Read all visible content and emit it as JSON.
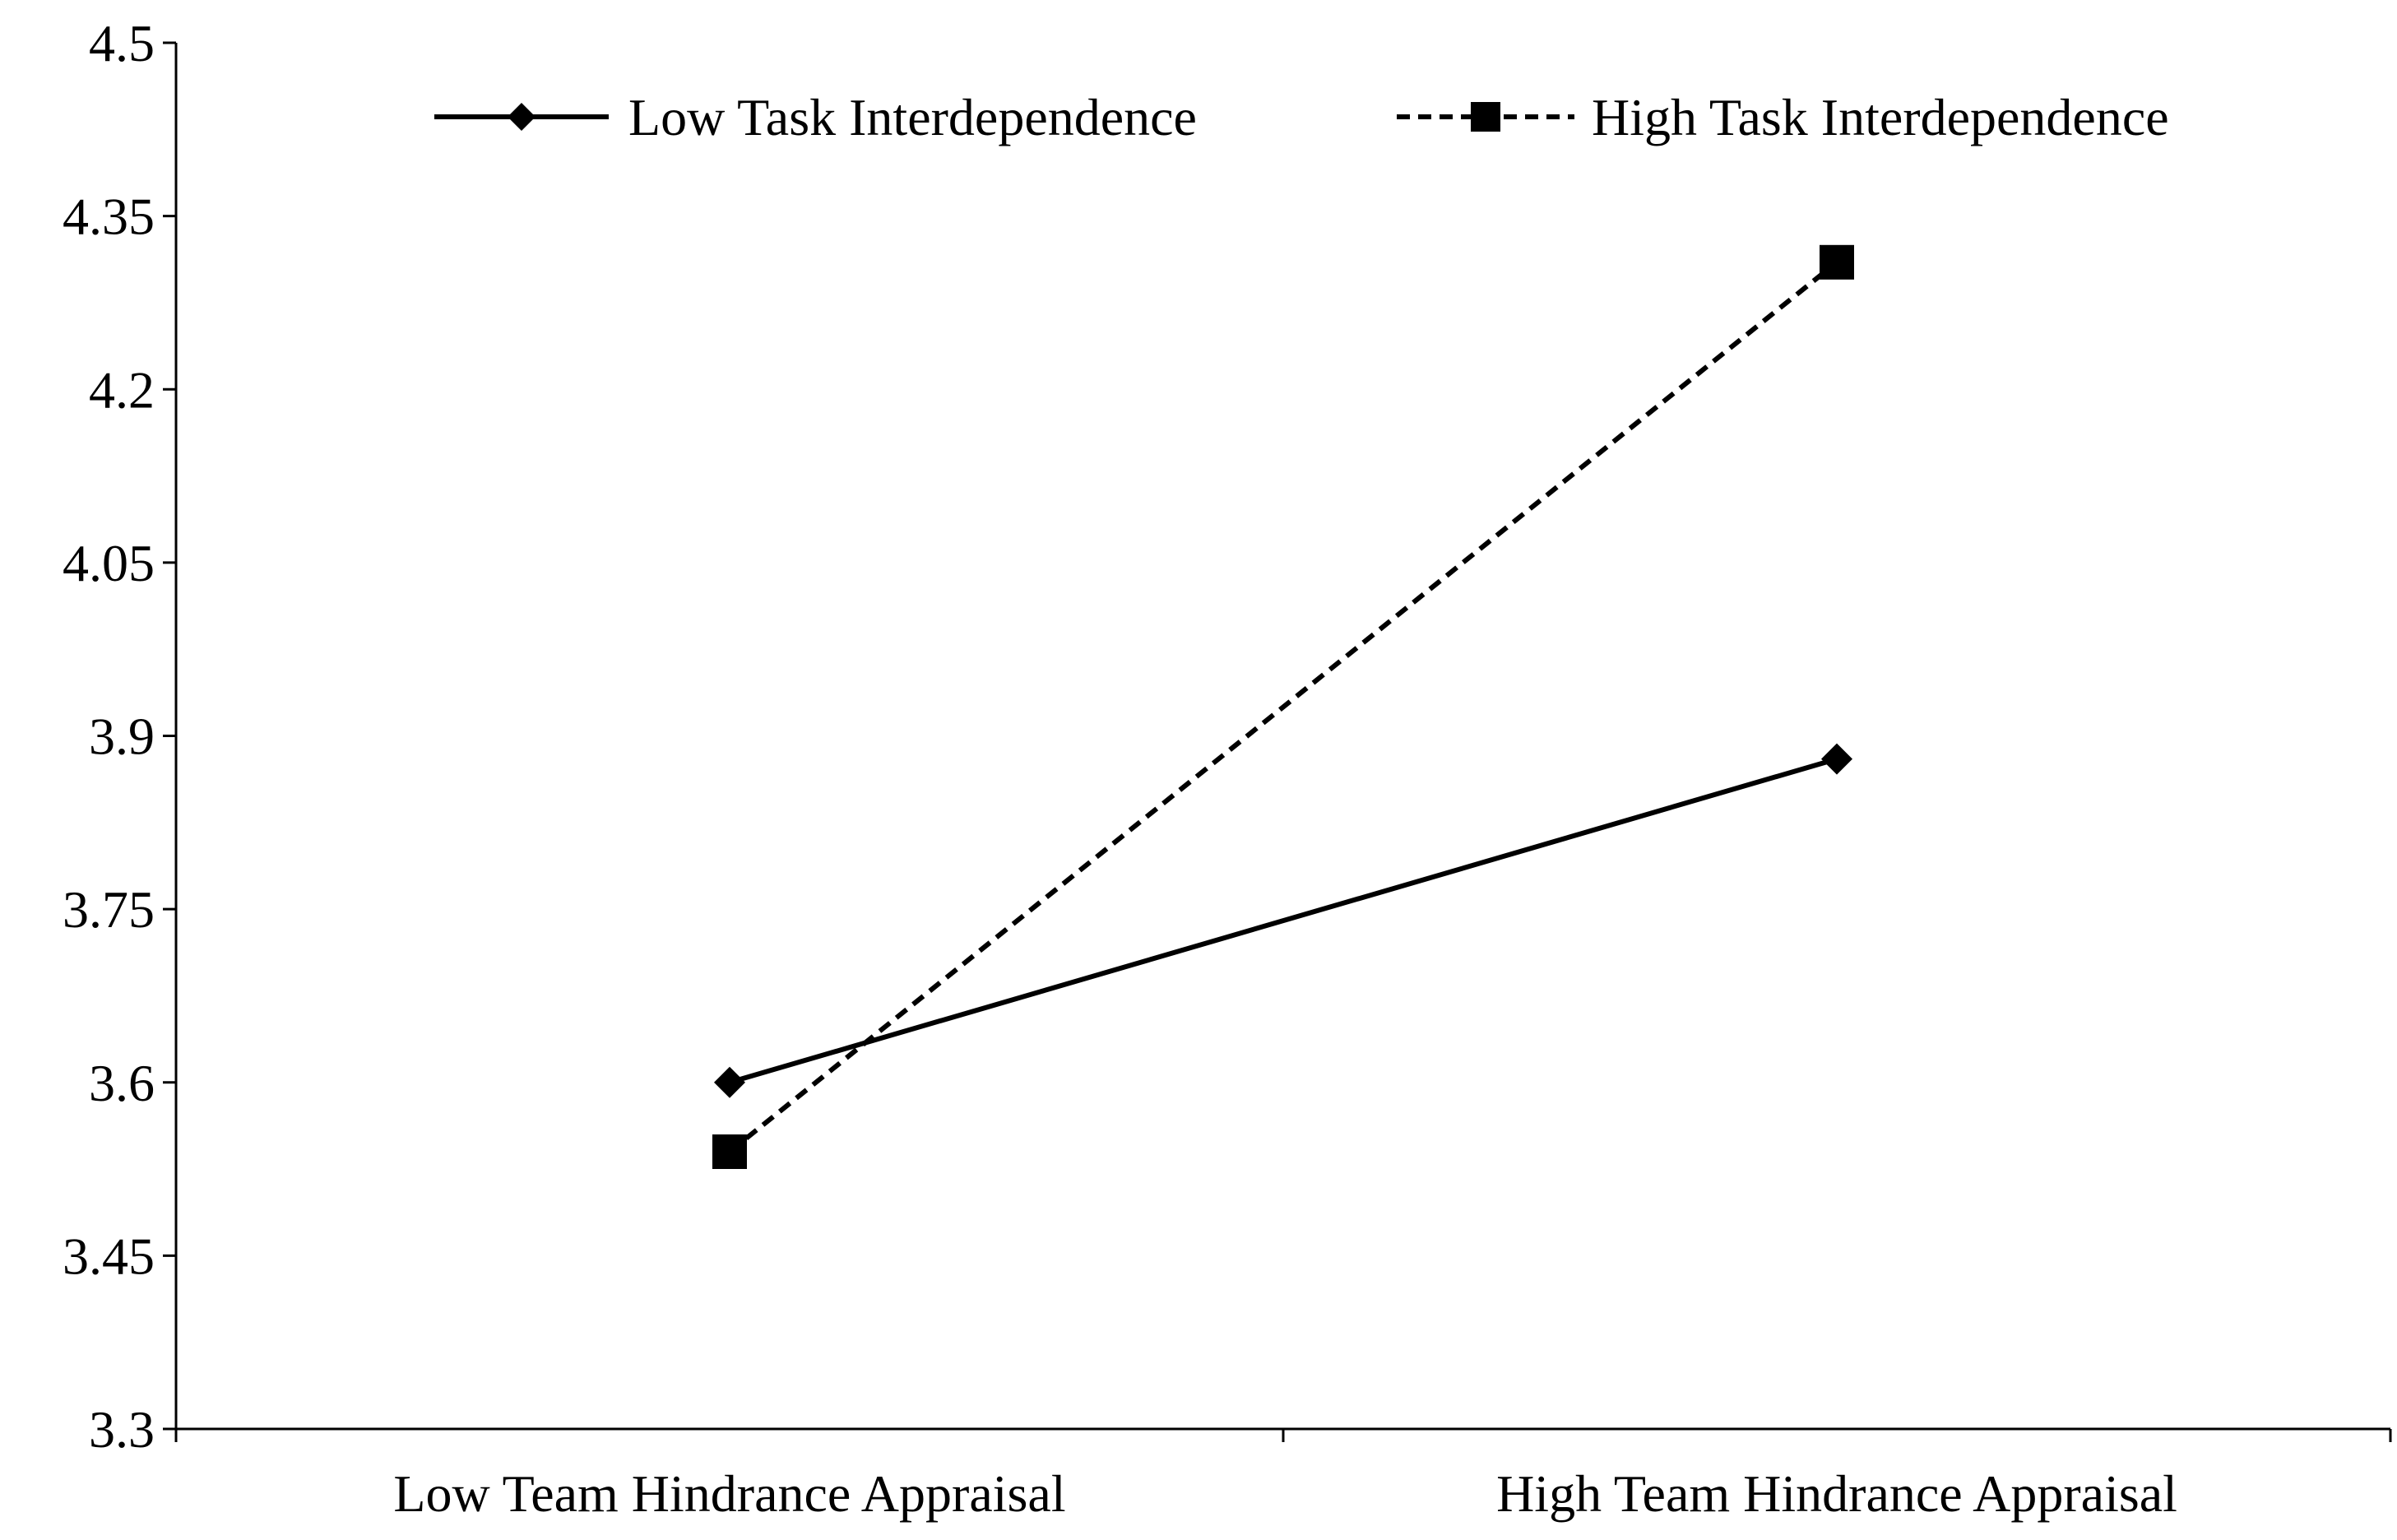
{
  "chart_data": {
    "type": "line",
    "categories": [
      "Low Team Hindrance Appraisal",
      "High Team Hindrance Appraisal"
    ],
    "series": [
      {
        "name": "Low Task Interdependence",
        "values": [
          3.6,
          3.88
        ],
        "line_style": "solid",
        "marker": "diamond",
        "color": "#000000"
      },
      {
        "name": "High Task Interdependence",
        "values": [
          3.54,
          4.31
        ],
        "line_style": "dashed",
        "marker": "square",
        "color": "#000000"
      }
    ],
    "ylim": [
      3.3,
      4.5
    ],
    "yticks": [
      "3.3",
      "3.45",
      "3.6",
      "3.75",
      "3.9",
      "4.05",
      "4.2",
      "4.35",
      "4.5"
    ],
    "legend_position": "top",
    "grid": false
  }
}
